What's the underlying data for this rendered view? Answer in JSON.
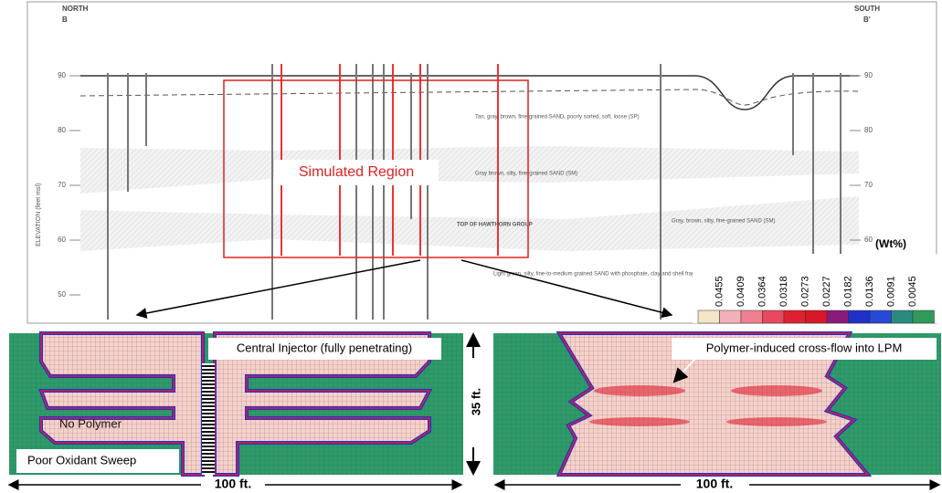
{
  "cross_section": {
    "north": "NORTH",
    "north_mark": "B",
    "south": "SOUTH",
    "south_mark": "B'",
    "elevations_left": [
      90,
      80,
      70,
      60,
      50
    ],
    "elevations_right": [
      90,
      80,
      70,
      60
    ],
    "y_axis_label": "ELEVATION (feet msl)",
    "region_label": "Simulated Region",
    "unit_label": "TOP OF HAWTHORN GROUP",
    "descriptions": [
      "Tan, gray, brown, fine-grained SAND, poorly sorted, soft, loose (SP)",
      "Gray brown, silty, fine-grained SAND (SM)",
      "Gray, brown, silty, fine-grained SAND (SM)",
      "Light green, silty, fine-to-medium grained SAND with phosphate, clay and shell fragments (SP)"
    ]
  },
  "legend": {
    "title": "(Wt%)",
    "values": [
      0.0455,
      0.0409,
      0.0364,
      0.0318,
      0.0273,
      0.0227,
      0.0182,
      0.0136,
      0.0091,
      0.0045
    ],
    "colors": [
      "#f6e4c8",
      "#f4b0b8",
      "#ee8090",
      "#e84860",
      "#e02030",
      "#d81828",
      "#8a1a7a",
      "#2030c8",
      "#2848d8",
      "#2a8a80",
      "#2f9a5a"
    ]
  },
  "panels": [
    {
      "label": "Central Injector (fully penetrating)",
      "notes": [
        "No Polymer",
        "Poor Oxidant Sweep"
      ],
      "width_label": "100 ft."
    },
    {
      "label": "Polymer-induced cross-flow into LPM",
      "width_label": "100 ft."
    }
  ],
  "height_label": "35 ft."
}
